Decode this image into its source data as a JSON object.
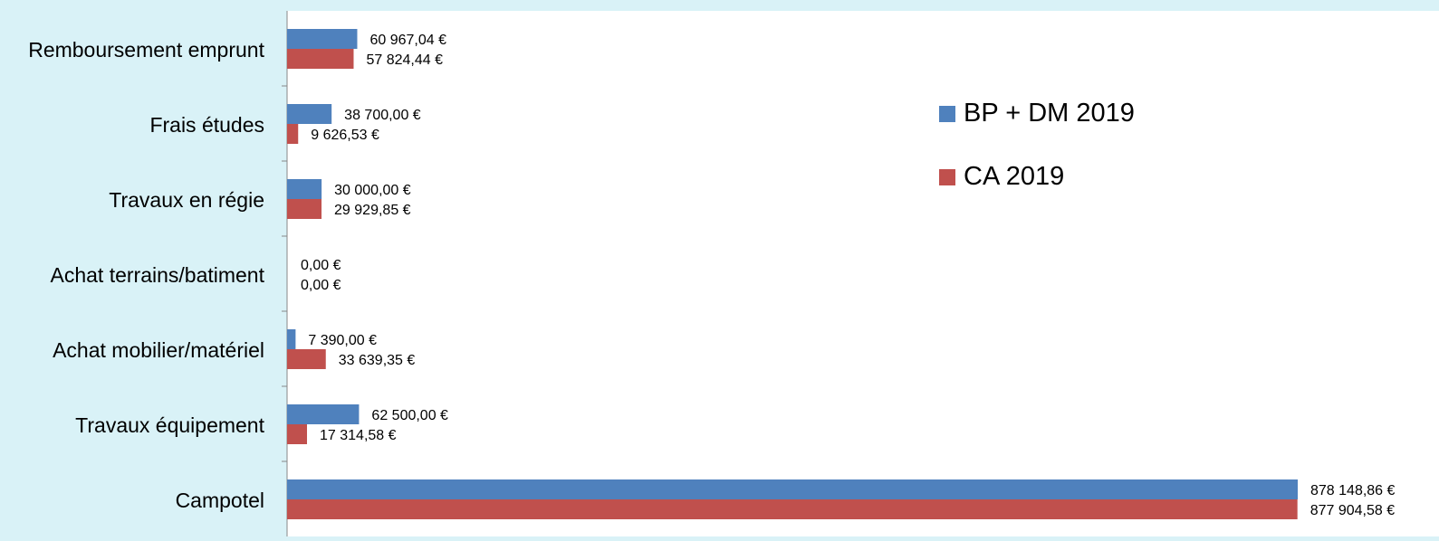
{
  "chart_data": {
    "type": "bar",
    "orientation": "horizontal",
    "categories": [
      "Remboursement emprunt",
      "Frais études",
      "Travaux en régie",
      "Achat terrains/batiment",
      "Achat mobilier/matériel",
      "Travaux équipement",
      "Campotel"
    ],
    "series": [
      {
        "name": "BP + DM 2019",
        "color": "#4f81bd",
        "values": [
          60967.04,
          38700.0,
          30000.0,
          0.0,
          7390.0,
          62500.0,
          878148.86
        ],
        "labels": [
          "60 967,04 €",
          "38 700,00 €",
          "30 000,00 €",
          "0,00 €",
          "7 390,00 €",
          "62 500,00 €",
          "878 148,86 €"
        ]
      },
      {
        "name": "CA 2019",
        "color": "#c0504d",
        "values": [
          57824.44,
          9626.53,
          29929.85,
          0.0,
          33639.35,
          17314.58,
          877904.58
        ],
        "labels": [
          "57 824,44 €",
          "9 626,53 €",
          "29 929,85 €",
          "0,00 €",
          "33 639,35 €",
          "17 314,58 €",
          "877 904,58 €"
        ]
      }
    ],
    "title": "",
    "xlabel": "",
    "ylabel": "",
    "xlim": [
      0,
      880000
    ],
    "grid": false,
    "legend_position": "right",
    "plot_background": "#ffffff",
    "page_background": "#d9f2f7"
  }
}
